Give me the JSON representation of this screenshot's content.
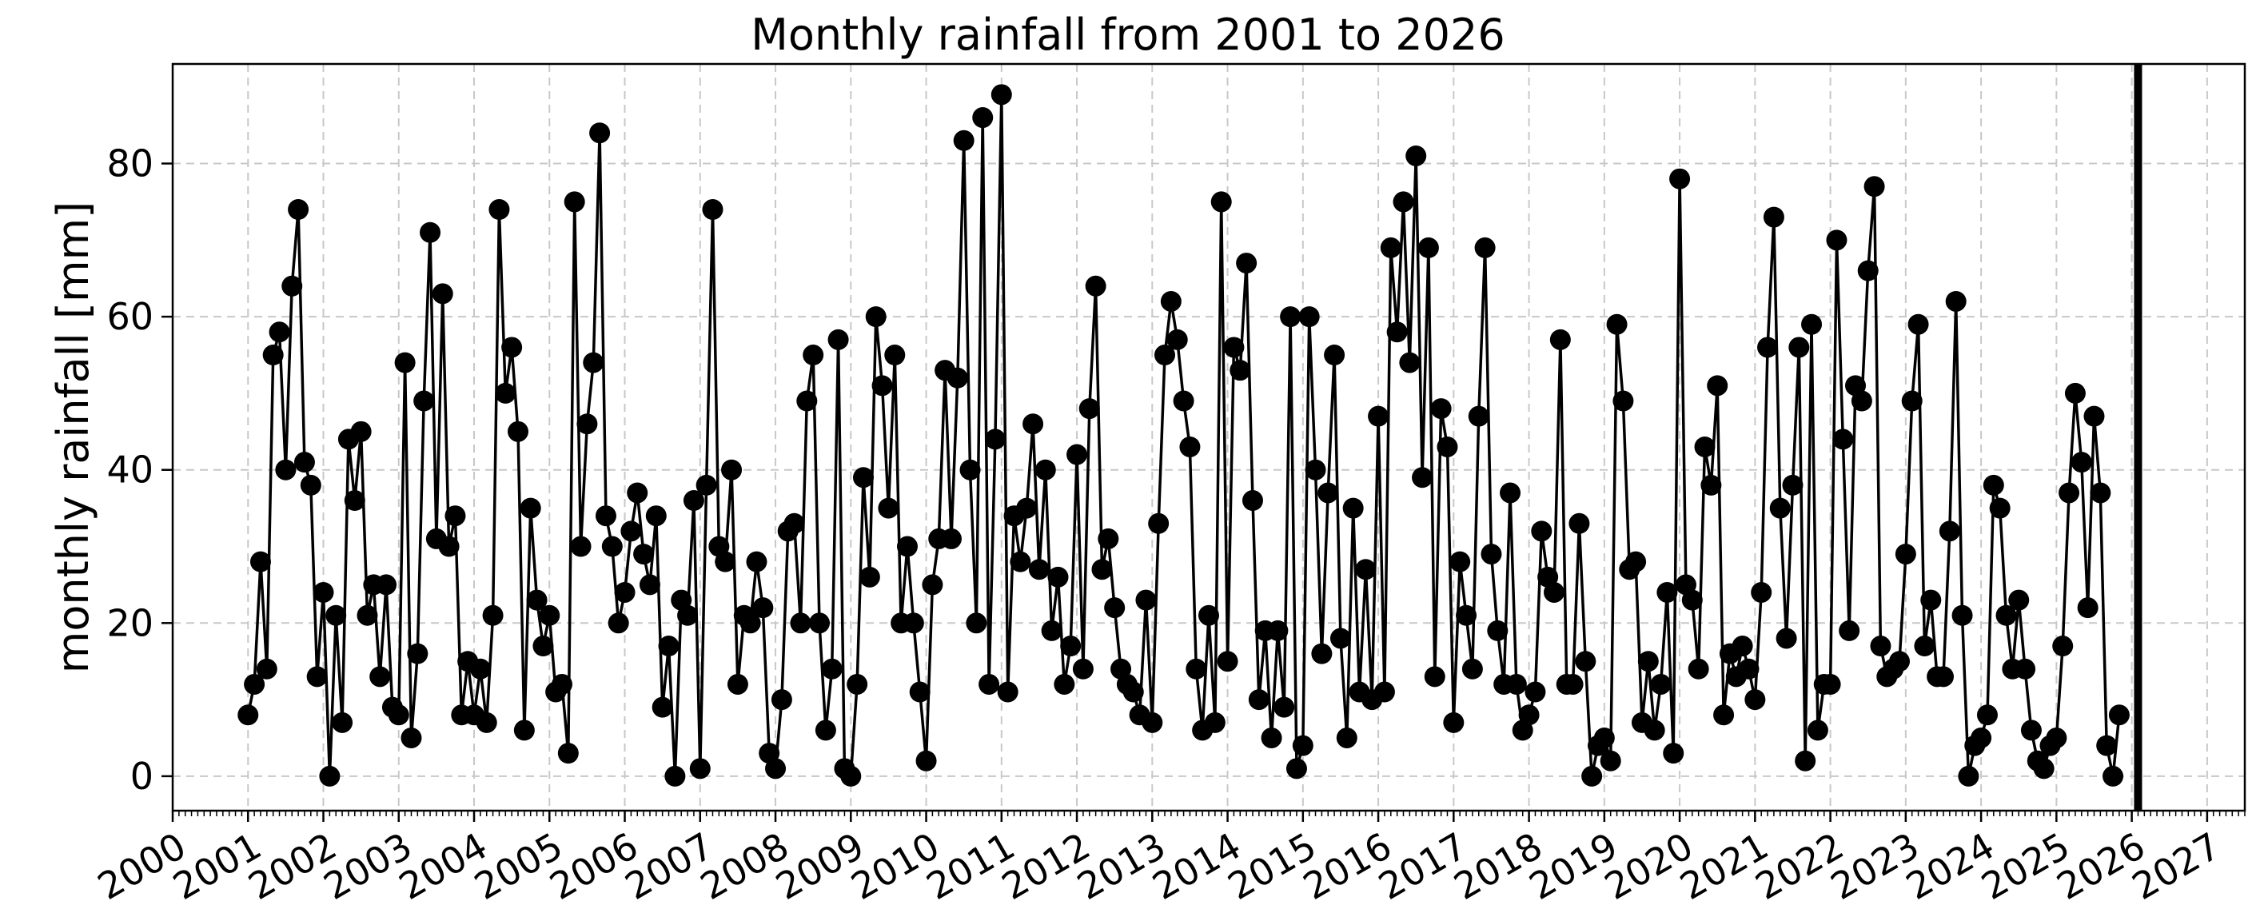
{
  "chart_data": {
    "type": "line",
    "title": "Monthly rainfall from 2001  to 2026",
    "xlabel": "",
    "ylabel": "monthly rainfall [mm]",
    "xlim": [
      "2000-01",
      "2027-07"
    ],
    "ylim": [
      -4.5,
      93
    ],
    "x_ticks": [
      "2000",
      "2001",
      "2002",
      "2003",
      "2004",
      "2005",
      "2006",
      "2007",
      "2008",
      "2009",
      "2010",
      "2011",
      "2012",
      "2013",
      "2014",
      "2015",
      "2016",
      "2017",
      "2018",
      "2019",
      "2020",
      "2021",
      "2022",
      "2023",
      "2024",
      "2025",
      "2026",
      "2027"
    ],
    "y_ticks": [
      0,
      20,
      40,
      60,
      80
    ],
    "grid": true,
    "x_start": "2001-01",
    "x_step": "1 month",
    "marker": "circle",
    "color": "#000000",
    "vertical_line_x": "2026-02",
    "values": [
      8,
      12,
      28,
      14,
      55,
      58,
      40,
      64,
      74,
      41,
      38,
      13,
      24,
      0,
      21,
      7,
      44,
      36,
      45,
      21,
      25,
      13,
      25,
      9,
      8,
      54,
      5,
      16,
      49,
      71,
      31,
      63,
      30,
      34,
      8,
      15,
      8,
      14,
      7,
      21,
      74,
      50,
      56,
      45,
      6,
      35,
      23,
      17,
      21,
      11,
      12,
      3,
      75,
      30,
      46,
      54,
      84,
      34,
      30,
      20,
      24,
      32,
      37,
      29,
      25,
      34,
      9,
      17,
      0,
      23,
      21,
      36,
      1,
      38,
      74,
      30,
      28,
      40,
      12,
      21,
      20,
      28,
      22,
      3,
      1,
      10,
      32,
      33,
      20,
      49,
      55,
      20,
      6,
      14,
      57,
      1,
      0,
      12,
      39,
      26,
      60,
      51,
      35,
      55,
      20,
      30,
      20,
      11,
      2,
      25,
      31,
      53,
      31,
      52,
      83,
      40,
      20,
      86,
      12,
      44,
      89,
      11,
      34,
      28,
      35,
      46,
      27,
      40,
      19,
      26,
      12,
      17,
      42,
      14,
      48,
      64,
      27,
      31,
      22,
      14,
      12,
      11,
      8,
      23,
      7,
      33,
      55,
      62,
      57,
      49,
      43,
      14,
      6,
      21,
      7,
      75,
      15,
      56,
      53,
      67,
      36,
      10,
      19,
      5,
      19,
      9,
      60,
      1,
      4,
      60,
      40,
      16,
      37,
      55,
      18,
      5,
      35,
      11,
      27,
      10,
      47,
      11,
      69,
      58,
      75,
      54,
      81,
      39,
      69,
      13,
      48,
      43,
      7,
      28,
      21,
      14,
      47,
      69,
      29,
      19,
      12,
      37,
      12,
      6,
      8,
      11,
      32,
      26,
      24,
      57,
      12,
      12,
      33,
      15,
      0,
      4,
      5,
      2,
      59,
      49,
      27,
      28,
      7,
      15,
      6,
      12,
      24,
      3,
      78,
      25,
      23,
      14,
      43,
      38,
      51,
      8,
      16,
      13,
      17,
      14,
      10,
      24,
      56,
      73,
      35,
      18,
      38,
      56,
      2,
      59,
      6,
      12,
      12,
      70,
      44,
      19,
      51,
      49,
      66,
      77,
      17,
      13,
      14,
      15,
      29,
      49,
      59,
      17,
      23,
      13,
      13,
      32,
      62,
      21,
      0,
      4,
      5,
      8,
      38,
      35,
      21,
      14,
      23,
      14,
      6,
      2,
      1,
      4,
      5,
      17,
      37,
      50,
      41,
      22,
      47,
      37,
      4,
      0,
      8
    ]
  }
}
